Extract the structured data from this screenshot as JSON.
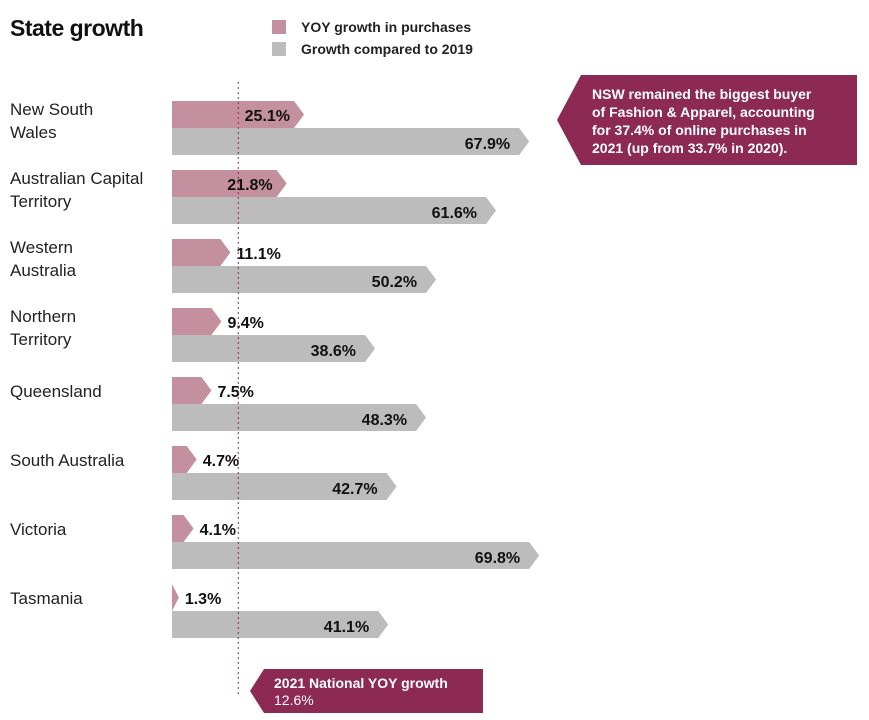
{
  "chart_data": {
    "type": "bar",
    "orientation": "horizontal",
    "title": "State growth",
    "categories": [
      [
        "New South",
        "Wales"
      ],
      [
        "Australian Capital",
        "Territory"
      ],
      [
        "Western",
        "Australia"
      ],
      [
        "Northern",
        "Territory"
      ],
      [
        "Queensland"
      ],
      [
        "South Australia"
      ],
      [
        "Victoria"
      ],
      [
        "Tasmania"
      ]
    ],
    "series": [
      {
        "name": "YOY growth in purchases",
        "color": "#c4909f",
        "values": [
          25.1,
          21.8,
          11.1,
          9.4,
          7.5,
          4.7,
          4.1,
          1.3
        ]
      },
      {
        "name": "Growth compared to 2019",
        "color": "#bcbcbc",
        "values": [
          67.9,
          61.6,
          50.2,
          38.6,
          48.3,
          42.7,
          69.8,
          41.1
        ]
      }
    ],
    "value_suffix": "%",
    "xlim": [
      0,
      70
    ],
    "reference_line": {
      "label": "2021 National YOY growth",
      "value": 12.6,
      "display": "12.6%"
    },
    "annotation": {
      "lines": [
        "NSW remained the biggest buyer",
        "of Fashion & Apparel, accounting",
        "for 37.4% of online purchases in",
        "2021 (up from 33.7% in 2020)."
      ],
      "color": "#8c2a53"
    }
  }
}
